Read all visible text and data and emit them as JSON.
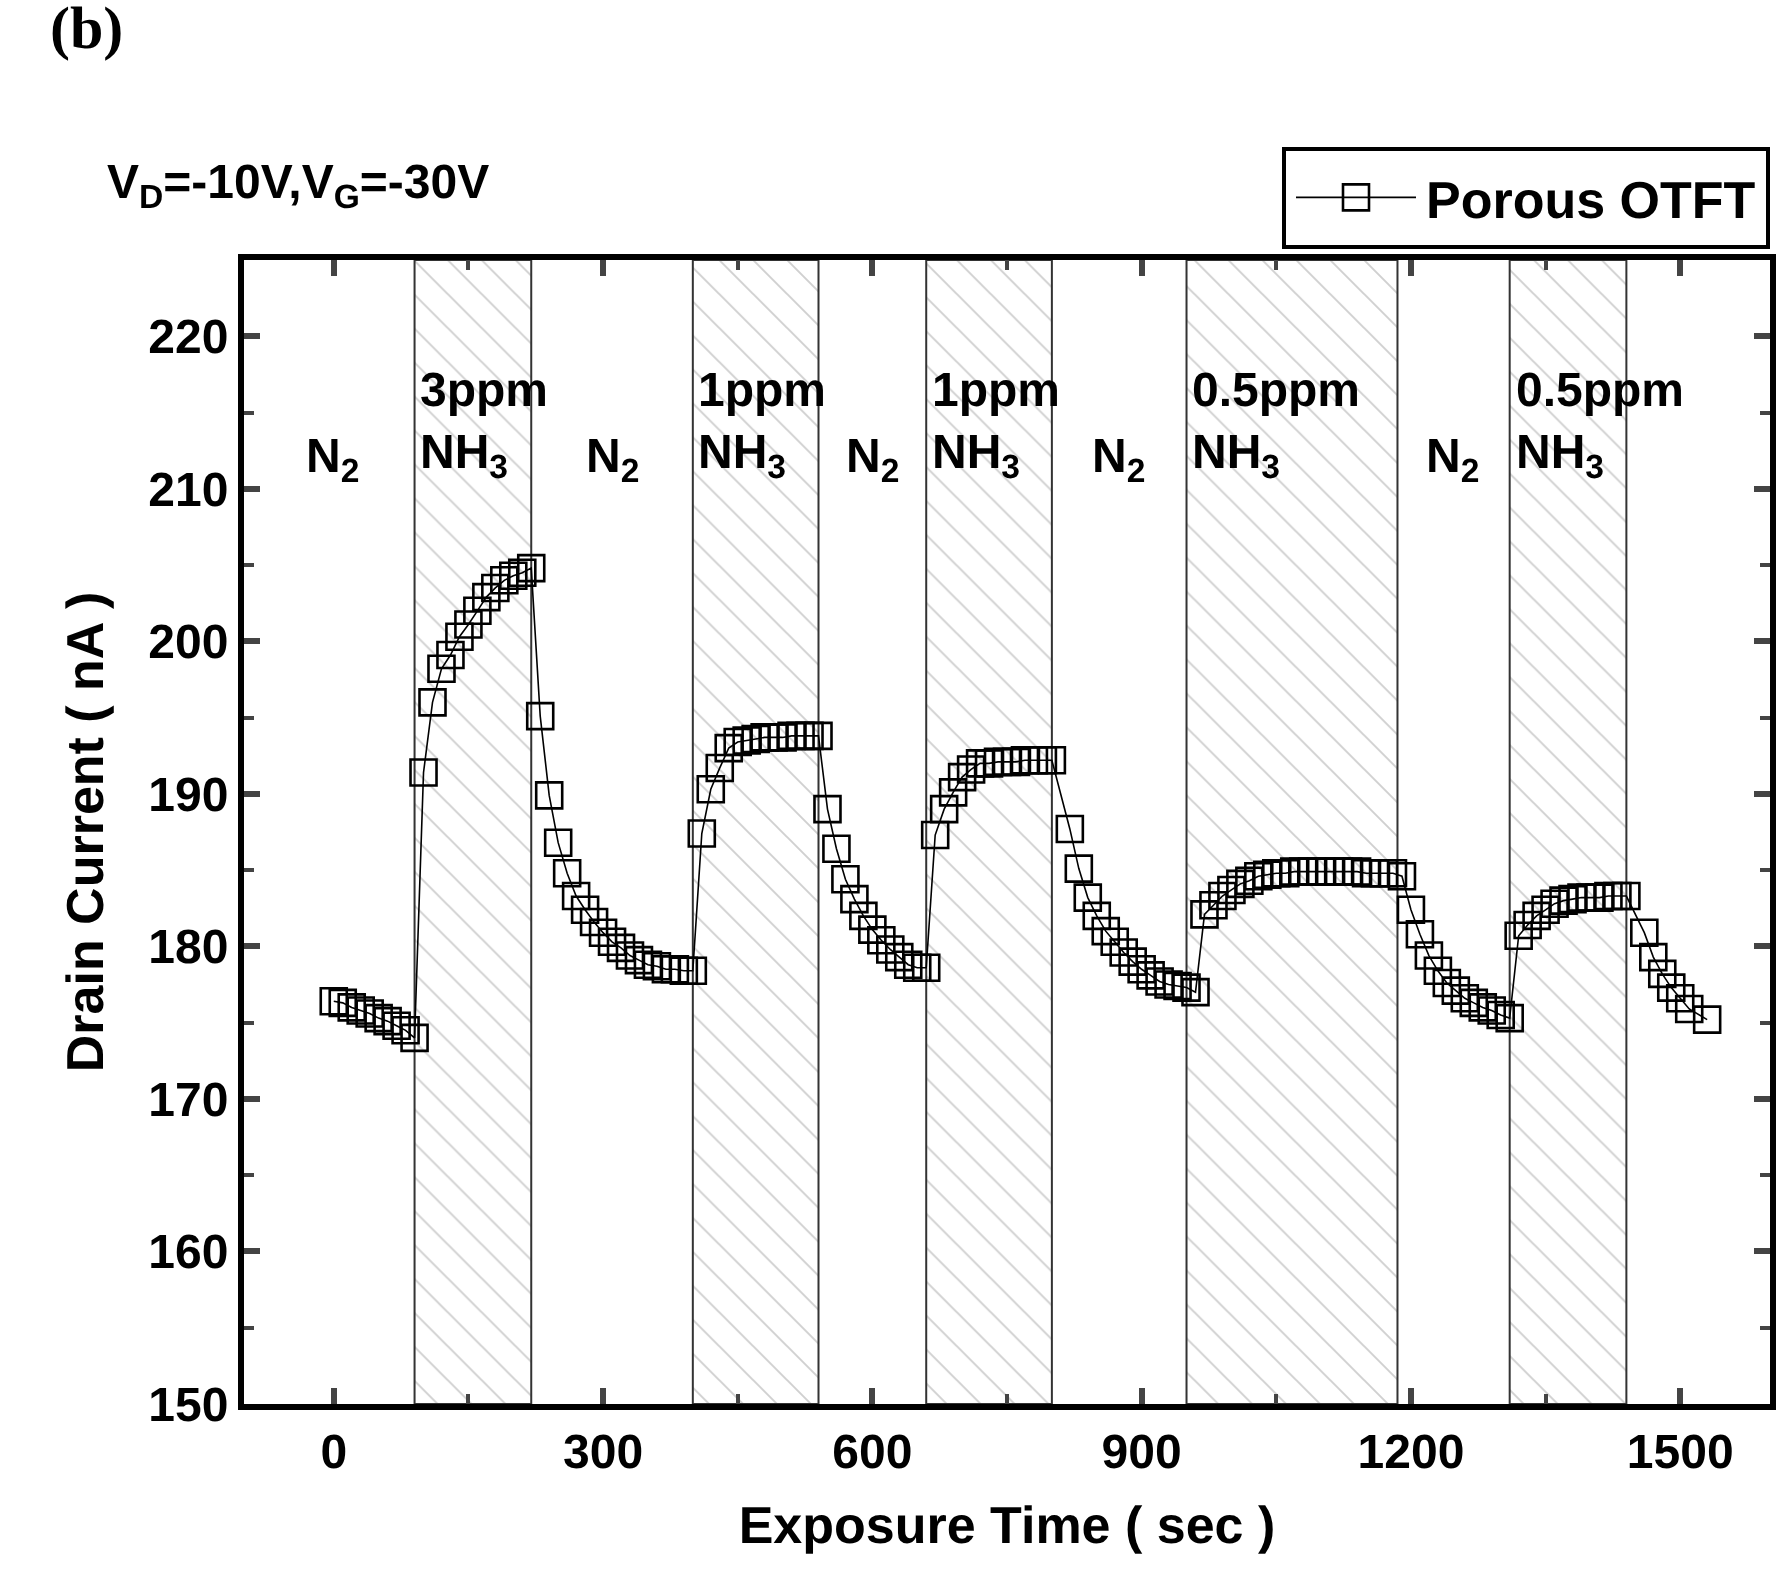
{
  "chart_data": {
    "type": "line",
    "title": "V$_{D}$=-10V,V$_{G}$=-30V",
    "xlabel": "Exposure Time ( sec )",
    "ylabel": "Drain Current ( nA )",
    "xlim": [
      -100,
      1600
    ],
    "xticks": [
      0,
      300,
      600,
      900,
      1200,
      1500
    ],
    "ylim": [
      150,
      225
    ],
    "yticks": [
      150,
      160,
      170,
      180,
      190,
      200,
      210,
      220
    ],
    "marker": "square",
    "line_style": "solid",
    "legend": "top right",
    "series": [
      {
        "name": "Porous OTFT",
        "color": "#000000",
        "x": [
          0,
          10,
          20,
          30,
          40,
          50,
          60,
          70,
          80,
          90,
          100,
          110,
          120,
          130,
          140,
          150,
          160,
          170,
          180,
          190,
          200,
          210,
          220,
          230,
          240,
          250,
          260,
          270,
          280,
          290,
          300,
          310,
          320,
          330,
          340,
          350,
          360,
          370,
          380,
          390,
          400,
          410,
          420,
          430,
          440,
          450,
          460,
          470,
          480,
          490,
          500,
          510,
          520,
          530,
          540,
          550,
          560,
          570,
          580,
          590,
          600,
          610,
          620,
          630,
          640,
          650,
          660,
          670,
          680,
          690,
          700,
          710,
          720,
          730,
          740,
          750,
          760,
          770,
          780,
          790,
          800,
          820,
          830,
          840,
          850,
          860,
          870,
          880,
          890,
          900,
          910,
          920,
          930,
          940,
          950,
          960,
          970,
          980,
          990,
          1000,
          1010,
          1020,
          1030,
          1040,
          1050,
          1060,
          1070,
          1080,
          1090,
          1100,
          1110,
          1120,
          1130,
          1140,
          1150,
          1160,
          1170,
          1180,
          1190,
          1200,
          1210,
          1220,
          1230,
          1240,
          1250,
          1260,
          1270,
          1280,
          1290,
          1300,
          1310,
          1320,
          1330,
          1340,
          1350,
          1360,
          1370,
          1380,
          1390,
          1400,
          1410,
          1420,
          1430,
          1440,
          1460,
          1470,
          1480,
          1490,
          1500,
          1510,
          1530
        ],
        "values": [
          176.4,
          176.3,
          176.0,
          175.8,
          175.6,
          175.3,
          175.1,
          174.8,
          174.5,
          174.0,
          191.4,
          196.0,
          198.2,
          199.1,
          200.3,
          201.1,
          202.0,
          202.9,
          203.5,
          204.0,
          204.3,
          204.5,
          204.8,
          195.1,
          189.9,
          186.8,
          184.8,
          183.3,
          182.4,
          181.6,
          180.9,
          180.3,
          179.9,
          179.4,
          179.1,
          178.8,
          178.7,
          178.5,
          178.5,
          178.4,
          178.4,
          187.4,
          190.3,
          191.7,
          193.0,
          193.4,
          193.5,
          193.6,
          193.7,
          193.7,
          193.7,
          193.8,
          193.8,
          193.8,
          193.8,
          189.0,
          186.4,
          184.4,
          183.1,
          182.0,
          181.1,
          180.4,
          179.8,
          179.3,
          178.8,
          178.6,
          178.6,
          187.3,
          189.0,
          190.1,
          191.1,
          191.6,
          192.0,
          192.0,
          192.1,
          192.1,
          192.1,
          192.2,
          192.2,
          192.2,
          192.2,
          187.7,
          185.1,
          183.2,
          182.0,
          181.0,
          180.3,
          179.6,
          179.0,
          178.5,
          178.1,
          177.7,
          177.5,
          177.4,
          177.3,
          177.0,
          182.1,
          182.7,
          183.3,
          183.7,
          184.1,
          184.3,
          184.6,
          184.7,
          184.8,
          184.8,
          184.9,
          184.9,
          184.9,
          184.9,
          184.9,
          184.9,
          184.9,
          184.9,
          184.8,
          184.8,
          184.8,
          184.8,
          184.6,
          182.4,
          180.8,
          179.4,
          178.4,
          177.6,
          177.1,
          176.6,
          176.3,
          176.0,
          175.8,
          175.5,
          175.3,
          180.7,
          181.4,
          182.0,
          182.4,
          182.8,
          183.0,
          183.1,
          183.2,
          183.2,
          183.2,
          183.3,
          183.3,
          183.3,
          180.9,
          179.3,
          178.2,
          177.3,
          176.6,
          175.9,
          175.2
        ]
      }
    ],
    "bands": [
      {
        "axis": "x",
        "from": 90,
        "to": 220,
        "color": "#a0a0a0",
        "label": "3ppm\nNH$_{3}$"
      },
      {
        "axis": "x",
        "from": 400,
        "to": 540,
        "color": "#a0a0a0",
        "label": "1ppm\nNH$_{3}$"
      },
      {
        "axis": "x",
        "from": 660,
        "to": 800,
        "color": "#a0a0a0",
        "label": "1ppm\nNH$_{3}$"
      },
      {
        "axis": "x",
        "from": 950,
        "to": 1185,
        "color": "#a0a0a0",
        "label": "0.5ppm\nNH$_{3}$"
      },
      {
        "axis": "x",
        "from": 1310,
        "to": 1440,
        "color": "#a0a0a0",
        "label": "0.5ppm\nNH$_{3}$"
      }
    ],
    "annotations": [
      "(b)",
      "N$_{2}$",
      "N$_{2}$",
      "N$_{2}$",
      "N$_{2}$",
      "N$_{2}$"
    ]
  }
}
